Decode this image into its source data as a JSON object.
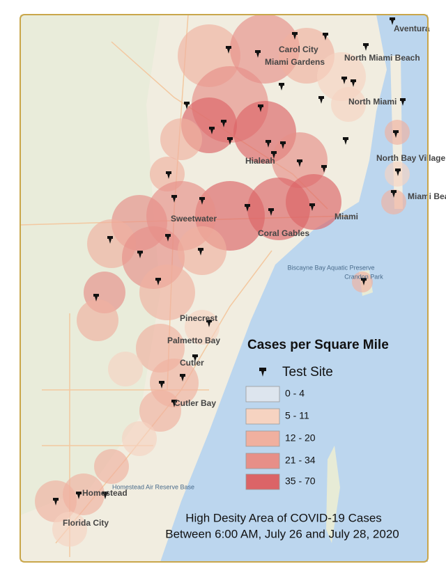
{
  "legend": {
    "title": "Cases per Square Mile",
    "test_site": "Test Site",
    "classes": [
      {
        "label": "0 - 4",
        "color": "#dde5ee"
      },
      {
        "label": "5 - 11",
        "color": "#f6d3c1"
      },
      {
        "label": "12 - 20",
        "color": "#f0b09f"
      },
      {
        "label": "21 - 34",
        "color": "#e78f88"
      },
      {
        "label": "35 - 70",
        "color": "#db6467"
      }
    ]
  },
  "caption": [
    "High Desity Area of COVID-19 Cases",
    "Between 6:00 AM, July 26 and July 28, 2020"
  ],
  "places": {
    "cities": [
      "Miami Gardens",
      "Hialeah",
      "Miami",
      "Sweetwater",
      "Coral Gables",
      "Pinecrest",
      "Palmetto Bay",
      "Cutler Bay",
      "Homestead",
      "Florida City",
      "Aventura",
      "North Miami",
      "North Miami Beach",
      "Carol City",
      "North Bay Village",
      "Miami Beach",
      "Cutler"
    ],
    "water": [
      "Biscayne Bay Aquatic Preserve",
      "Crandon Park",
      "Homestead Air Reserve Base"
    ]
  }
}
